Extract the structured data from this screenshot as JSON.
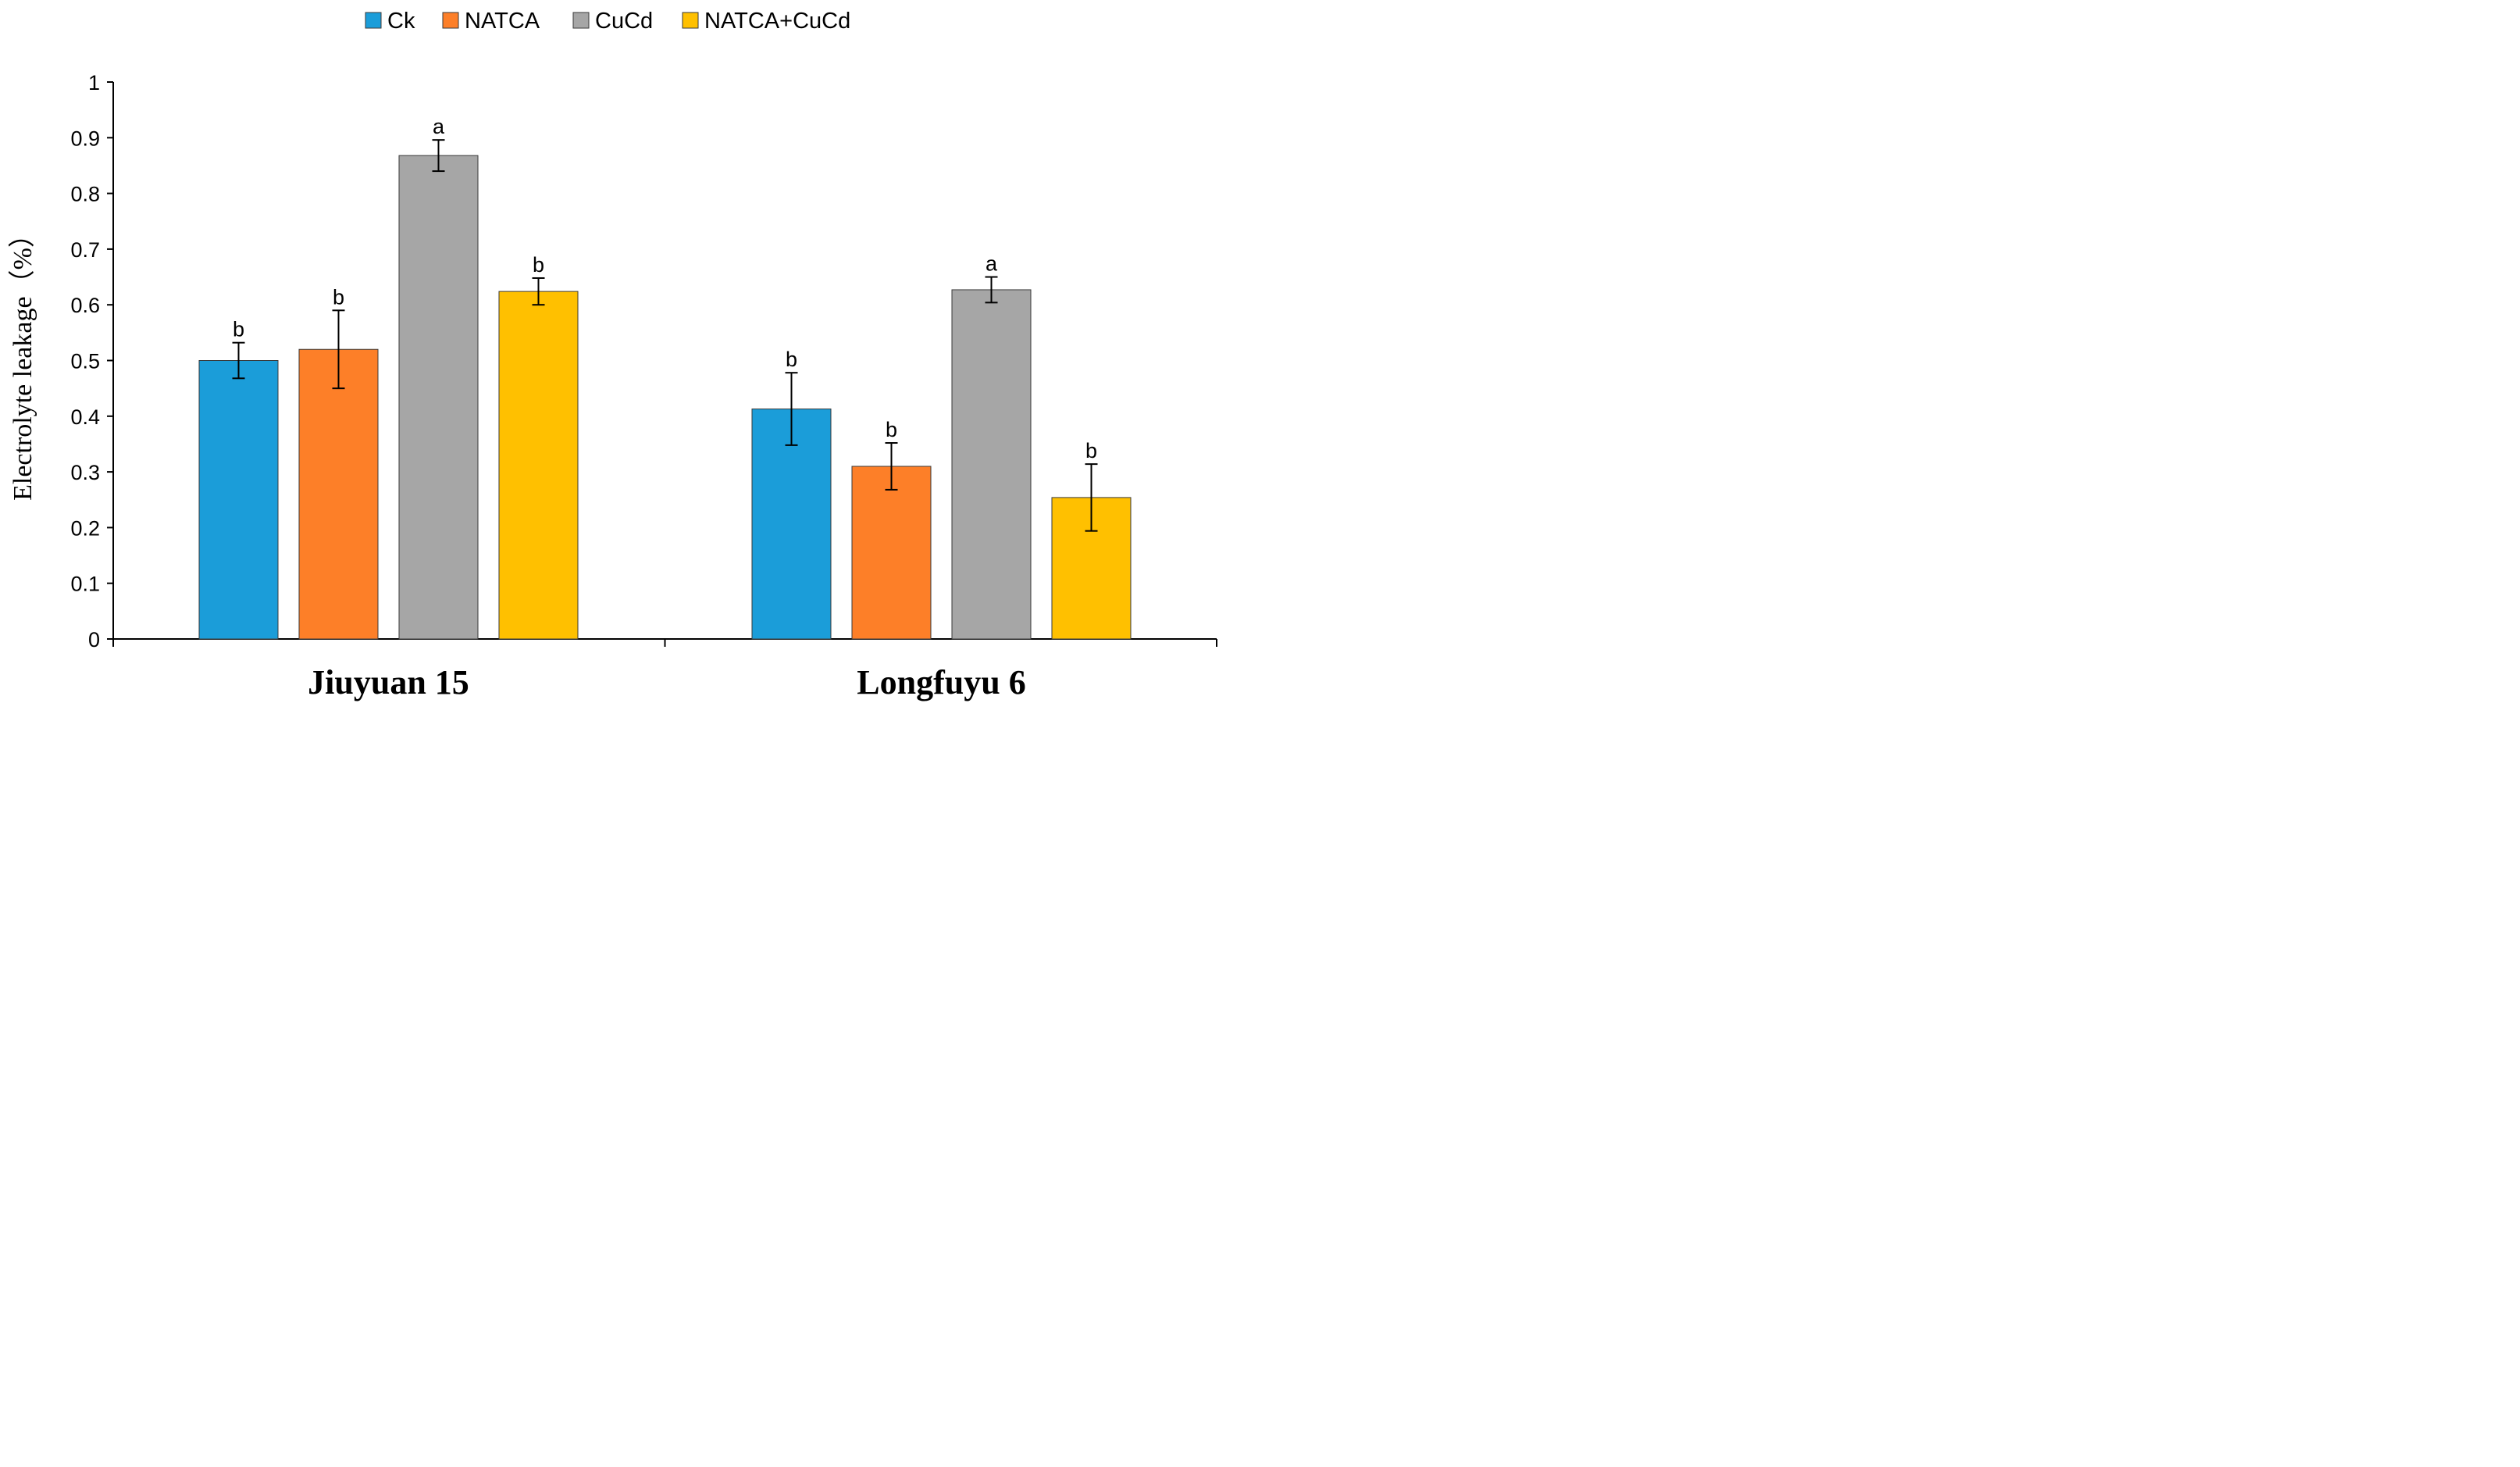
{
  "chart_data": {
    "type": "bar",
    "title": "",
    "xlabel": "",
    "ylabel": "Electrolyte leakage（%）",
    "ylim": [
      0,
      1
    ],
    "yticks": [
      "0",
      "0.1",
      "0.2",
      "0.3",
      "0.4",
      "0.5",
      "0.6",
      "0.7",
      "0.8",
      "0.9",
      "1"
    ],
    "categories": [
      "Jiuyuan 15",
      "Longfuyu 6"
    ],
    "legend_position": "top",
    "series": [
      {
        "name": "Ck",
        "color": "#1b9dd9",
        "values": [
          0.5,
          0.413
        ],
        "errors": [
          0.032,
          0.065
        ],
        "labels": [
          "b",
          "b"
        ]
      },
      {
        "name": "NATCA",
        "color": "#fd7f28",
        "values": [
          0.52,
          0.31
        ],
        "errors": [
          0.07,
          0.042
        ],
        "labels": [
          "b",
          "b"
        ]
      },
      {
        "name": "CuCd",
        "color": "#a6a6a6",
        "values": [
          0.868,
          0.627
        ],
        "errors": [
          0.028,
          0.023
        ],
        "labels": [
          "a",
          "a"
        ]
      },
      {
        "name": "NATCA+CuCd",
        "color": "#ffc000",
        "values": [
          0.624,
          0.254
        ],
        "errors": [
          0.024,
          0.06
        ],
        "labels": [
          "b",
          "b"
        ]
      }
    ]
  }
}
